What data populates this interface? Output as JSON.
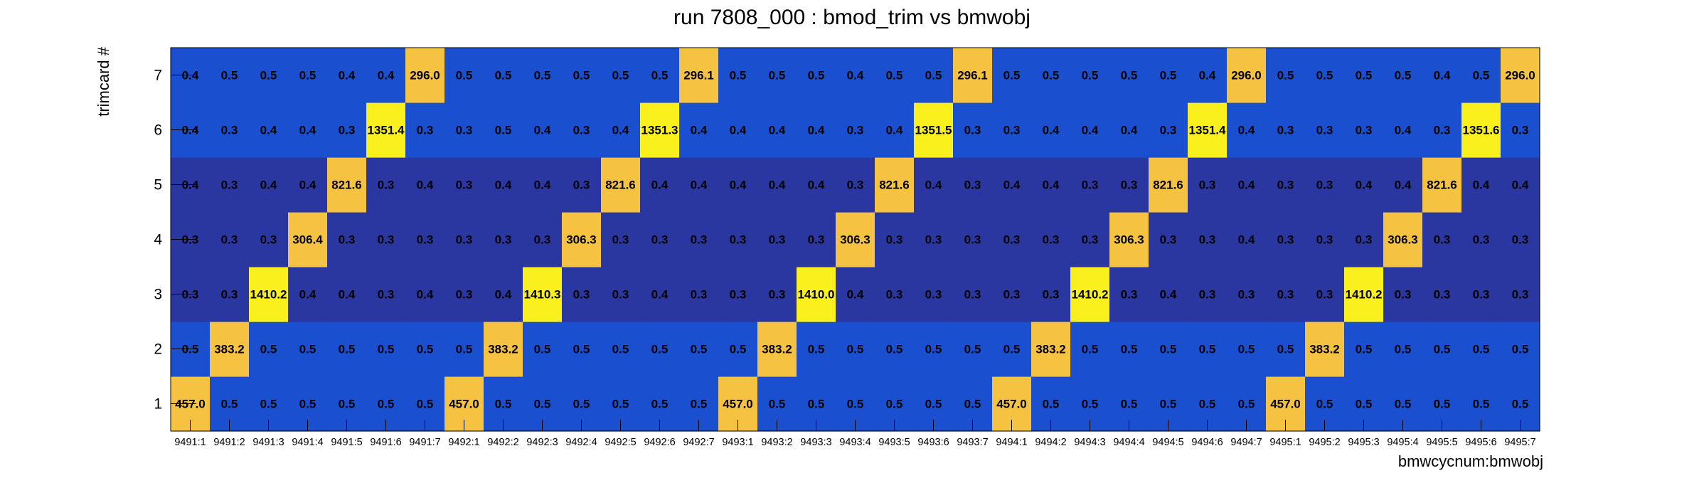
{
  "chart_data": {
    "type": "heatmap",
    "title": "run 7808_000 : bmod_trim vs bmwobj",
    "xlabel": "bmwcycnum:bmwobj",
    "ylabel": "trimcard #",
    "x_categories": [
      "9491:1",
      "9491:2",
      "9491:3",
      "9491:4",
      "9491:5",
      "9491:6",
      "9491:7",
      "9492:1",
      "9492:2",
      "9492:3",
      "9492:4",
      "9492:5",
      "9492:6",
      "9492:7",
      "9493:1",
      "9493:2",
      "9493:3",
      "9493:4",
      "9493:5",
      "9493:6",
      "9493:7",
      "9494:1",
      "9494:2",
      "9494:3",
      "9494:4",
      "9494:5",
      "9494:6",
      "9494:7",
      "9495:1",
      "9495:2",
      "9495:3",
      "9495:4",
      "9495:5",
      "9495:6",
      "9495:7"
    ],
    "y_categories": [
      "1",
      "2",
      "3",
      "4",
      "5",
      "6",
      "7"
    ],
    "values": [
      [
        "457.0",
        "0.5",
        "0.5",
        "0.5",
        "0.5",
        "0.5",
        "0.5",
        "457.0",
        "0.5",
        "0.5",
        "0.5",
        "0.5",
        "0.5",
        "0.5",
        "457.0",
        "0.5",
        "0.5",
        "0.5",
        "0.5",
        "0.5",
        "0.5",
        "457.0",
        "0.5",
        "0.5",
        "0.5",
        "0.5",
        "0.5",
        "0.5",
        "457.0",
        "0.5",
        "0.5",
        "0.5",
        "0.5",
        "0.5",
        "0.5"
      ],
      [
        "0.5",
        "383.2",
        "0.5",
        "0.5",
        "0.5",
        "0.5",
        "0.5",
        "0.5",
        "383.2",
        "0.5",
        "0.5",
        "0.5",
        "0.5",
        "0.5",
        "0.5",
        "383.2",
        "0.5",
        "0.5",
        "0.5",
        "0.5",
        "0.5",
        "0.5",
        "383.2",
        "0.5",
        "0.5",
        "0.5",
        "0.5",
        "0.5",
        "0.5",
        "383.2",
        "0.5",
        "0.5",
        "0.5",
        "0.5",
        "0.5"
      ],
      [
        "0.3",
        "0.3",
        "1410.2",
        "0.4",
        "0.4",
        "0.3",
        "0.4",
        "0.3",
        "0.4",
        "1410.3",
        "0.3",
        "0.3",
        "0.4",
        "0.3",
        "0.3",
        "0.3",
        "1410.0",
        "0.4",
        "0.3",
        "0.3",
        "0.3",
        "0.3",
        "0.3",
        "1410.2",
        "0.3",
        "0.4",
        "0.3",
        "0.3",
        "0.3",
        "0.3",
        "1410.2",
        "0.3",
        "0.3",
        "0.3",
        "0.3"
      ],
      [
        "0.3",
        "0.3",
        "0.3",
        "306.4",
        "0.3",
        "0.3",
        "0.3",
        "0.3",
        "0.3",
        "0.3",
        "306.3",
        "0.3",
        "0.3",
        "0.3",
        "0.3",
        "0.3",
        "0.3",
        "306.3",
        "0.3",
        "0.3",
        "0.3",
        "0.3",
        "0.3",
        "0.3",
        "306.3",
        "0.3",
        "0.3",
        "0.4",
        "0.3",
        "0.3",
        "0.3",
        "306.3",
        "0.3",
        "0.3",
        "0.3"
      ],
      [
        "0.4",
        "0.3",
        "0.4",
        "0.4",
        "821.6",
        "0.3",
        "0.4",
        "0.3",
        "0.4",
        "0.4",
        "0.3",
        "821.6",
        "0.4",
        "0.4",
        "0.4",
        "0.4",
        "0.4",
        "0.3",
        "821.6",
        "0.4",
        "0.3",
        "0.4",
        "0.4",
        "0.3",
        "0.3",
        "821.6",
        "0.3",
        "0.4",
        "0.3",
        "0.3",
        "0.4",
        "0.4",
        "821.6",
        "0.4",
        "0.4"
      ],
      [
        "0.4",
        "0.3",
        "0.4",
        "0.4",
        "0.3",
        "1351.4",
        "0.3",
        "0.3",
        "0.5",
        "0.4",
        "0.3",
        "0.4",
        "1351.3",
        "0.4",
        "0.4",
        "0.4",
        "0.4",
        "0.3",
        "0.4",
        "1351.5",
        "0.3",
        "0.3",
        "0.4",
        "0.4",
        "0.4",
        "0.3",
        "1351.4",
        "0.4",
        "0.3",
        "0.3",
        "0.3",
        "0.4",
        "0.3",
        "1351.6",
        "0.3"
      ],
      [
        "0.4",
        "0.5",
        "0.5",
        "0.5",
        "0.4",
        "0.4",
        "296.0",
        "0.5",
        "0.5",
        "0.5",
        "0.5",
        "0.5",
        "0.5",
        "296.1",
        "0.5",
        "0.5",
        "0.5",
        "0.4",
        "0.5",
        "0.5",
        "296.1",
        "0.5",
        "0.5",
        "0.5",
        "0.5",
        "0.5",
        "0.4",
        "296.0",
        "0.5",
        "0.5",
        "0.5",
        "0.5",
        "0.4",
        "0.5",
        "296.0"
      ]
    ],
    "colors": {
      "low": "#2a37a0",
      "mid_low": "#1a4fcf",
      "mid_high": "#f5c242",
      "high": "#faf01e"
    }
  }
}
